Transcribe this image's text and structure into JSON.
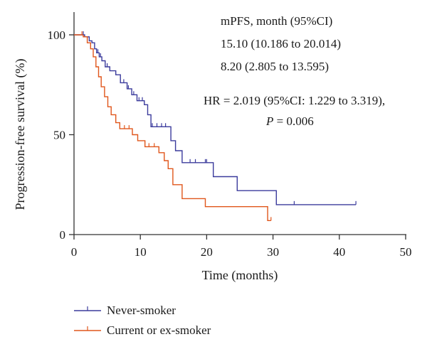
{
  "chart_data": {
    "type": "line",
    "step": true,
    "xlabel": "Time (months)",
    "ylabel": "Progression-free survival (%)",
    "xlim": [
      0,
      50
    ],
    "ylim": [
      0,
      100
    ],
    "xticks": [
      0,
      10,
      20,
      30,
      40,
      50
    ],
    "yticks": [
      0,
      50,
      100
    ],
    "grid": false,
    "legend_position": "bottom-left",
    "annotations": {
      "header": "mPFS, month (95%CI)",
      "line1": "15.10 (10.186 to 20.014)",
      "line2": "8.20 (2.805 to 13.595)",
      "hr_line": "HR = 2.019 (95%CI: 1.229 to 3.319),",
      "p_symbol": "P",
      "p_value": " = 0.006"
    },
    "series": [
      {
        "name": "Never-smoker",
        "color": "#3b3b9c",
        "points": [
          [
            0,
            100
          ],
          [
            1.2,
            100
          ],
          [
            1.6,
            99
          ],
          [
            2.3,
            97
          ],
          [
            2.7,
            96
          ],
          [
            3.1,
            93
          ],
          [
            3.4,
            91
          ],
          [
            3.8,
            89
          ],
          [
            4.2,
            87
          ],
          [
            4.7,
            84
          ],
          [
            5.4,
            82
          ],
          [
            6.3,
            80
          ],
          [
            7.0,
            76
          ],
          [
            8.0,
            73
          ],
          [
            8.7,
            70
          ],
          [
            9.5,
            67
          ],
          [
            10.6,
            65
          ],
          [
            11.1,
            60
          ],
          [
            11.6,
            54
          ],
          [
            14.6,
            47
          ],
          [
            15.3,
            42
          ],
          [
            16.3,
            36
          ],
          [
            21.0,
            29
          ],
          [
            24.6,
            22
          ],
          [
            30.5,
            15
          ],
          [
            42.5,
            15
          ]
        ],
        "censor_x": [
          1.4,
          3.6,
          4.0,
          5.0,
          7.5,
          8.2,
          9.0,
          9.8,
          10.3,
          11.8,
          12.5,
          13.2,
          13.8,
          17.5,
          18.3,
          19.8,
          20.0,
          33.2,
          42.5
        ]
      },
      {
        "name": "Current or ex-smoker",
        "color": "#e0561b",
        "points": [
          [
            0,
            100
          ],
          [
            1.0,
            100
          ],
          [
            1.4,
            99
          ],
          [
            2.0,
            96
          ],
          [
            2.5,
            93
          ],
          [
            2.9,
            89
          ],
          [
            3.3,
            84
          ],
          [
            3.7,
            79
          ],
          [
            4.1,
            74
          ],
          [
            4.6,
            69
          ],
          [
            5.1,
            64
          ],
          [
            5.6,
            60
          ],
          [
            6.3,
            56
          ],
          [
            6.9,
            53
          ],
          [
            8.8,
            50
          ],
          [
            9.6,
            47
          ],
          [
            10.7,
            44
          ],
          [
            12.8,
            41
          ],
          [
            13.6,
            37
          ],
          [
            14.2,
            33
          ],
          [
            14.9,
            25
          ],
          [
            16.3,
            18
          ],
          [
            19.8,
            14
          ],
          [
            29.2,
            7
          ],
          [
            29.7,
            7
          ]
        ],
        "censor_x": [
          1.2,
          7.6,
          8.3,
          11.3,
          12.1,
          29.7
        ]
      }
    ]
  }
}
